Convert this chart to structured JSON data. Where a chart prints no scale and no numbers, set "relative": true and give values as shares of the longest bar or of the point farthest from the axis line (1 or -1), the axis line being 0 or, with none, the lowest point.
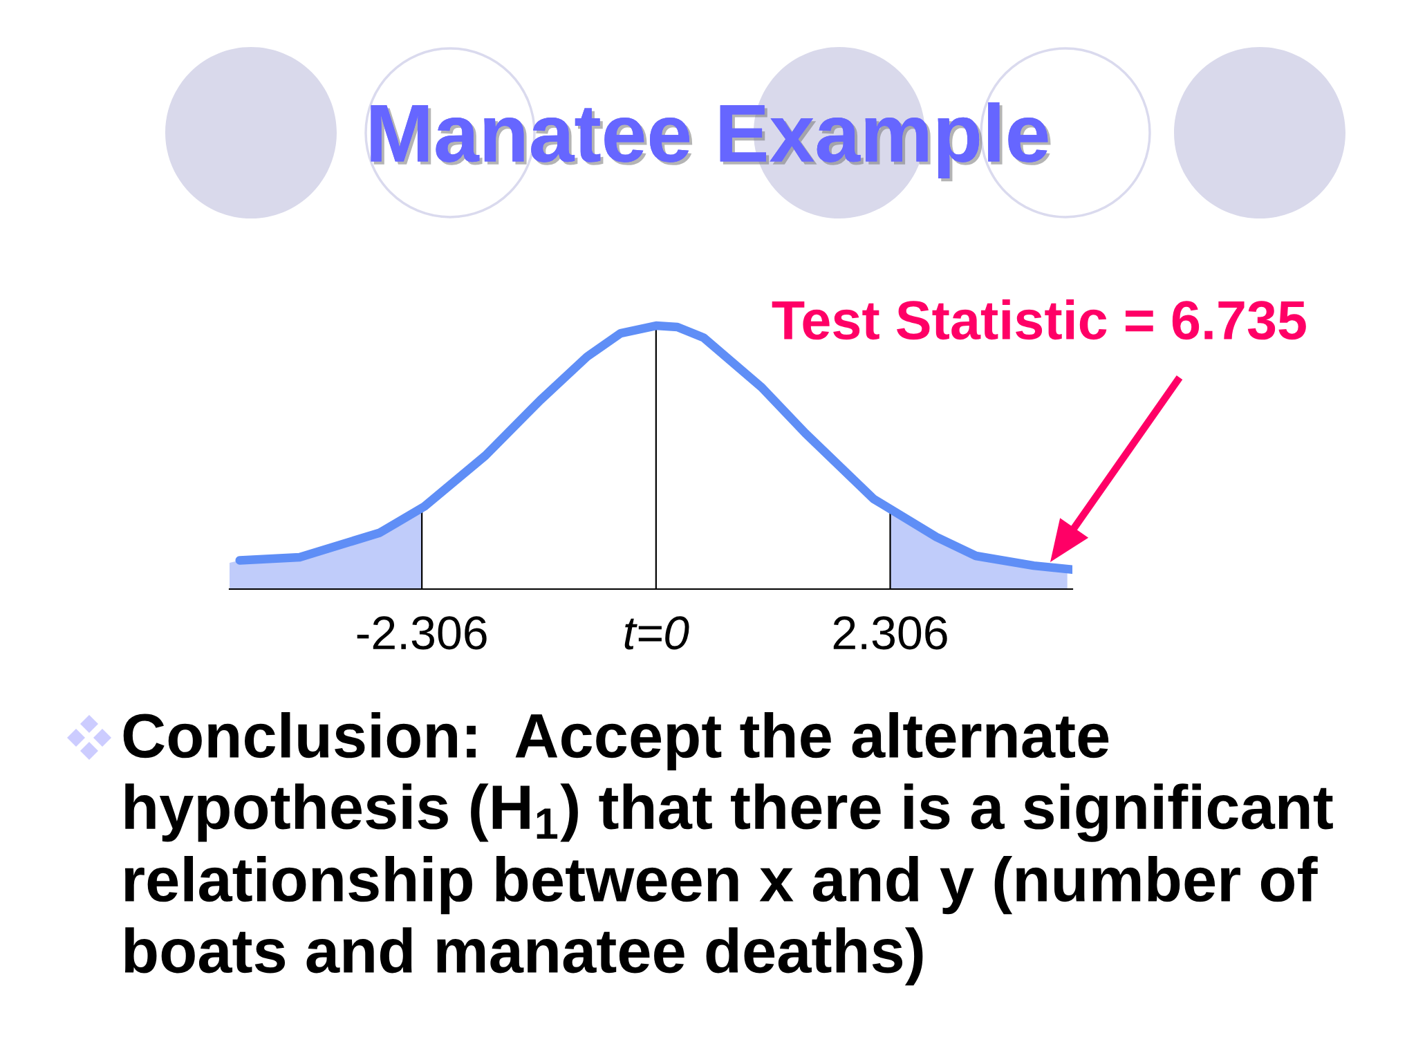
{
  "chart_data": {
    "type": "line",
    "title": "Manatee Example",
    "relative": true,
    "tick_labels": "x",
    "xlim": [
      -4.2,
      4.1
    ],
    "xticks": [
      -2.306,
      {
        "value": 0,
        "label": "t=0"
      },
      2.306
    ],
    "series": [
      {
        "type": "area",
        "color": "#c0ccfa",
        "x": [
          -4.2,
          -4.1,
          -3.51,
          -2.72,
          -2.306
        ],
        "values": [
          0.1,
          0.109,
          0.121,
          0.214,
          0.308
        ]
      },
      {
        "type": "area",
        "color": "#c0ccfa",
        "x": [
          2.306,
          2.76,
          3.15,
          3.72,
          4.05
        ],
        "values": [
          0.304,
          0.198,
          0.126,
          0.089,
          0.074
        ]
      },
      {
        "color": "#5f8ef6",
        "x": [
          -4.1,
          -3.51,
          -2.72,
          -2.28,
          -1.68,
          -1.14,
          -0.68,
          -0.35,
          0,
          0.21,
          0.47,
          1.04,
          1.47,
          2.14,
          2.76,
          3.15,
          3.72,
          4.1
        ],
        "values": [
          0.109,
          0.121,
          0.214,
          0.314,
          0.507,
          0.717,
          0.882,
          0.971,
          1,
          0.995,
          0.954,
          0.766,
          0.592,
          0.343,
          0.198,
          0.126,
          0.089,
          0.074
        ]
      }
    ],
    "ref_lines": [
      {
        "axis": "x",
        "value": -2.306
      },
      {
        "axis": "x",
        "value": 0
      },
      {
        "axis": "x",
        "value": 2.306
      }
    ],
    "annotations": [
      "Test Statistic = 6.735",
      "Conclusion:  Accept the alternate hypothesis (H$_{1}$) that there is a significant relationship between x and y (number of boats and manatee deaths)"
    ]
  }
}
